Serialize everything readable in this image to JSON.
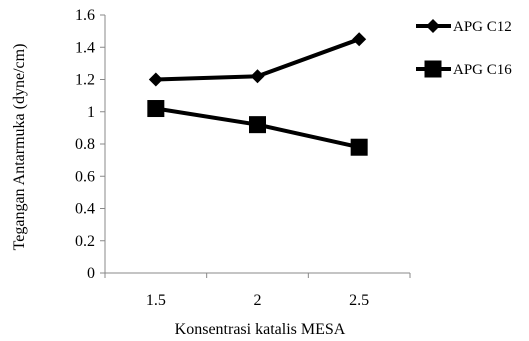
{
  "chart_data": {
    "type": "line",
    "categories": [
      "1.5",
      "2",
      "2.5"
    ],
    "x": [
      1.5,
      2,
      2.5
    ],
    "series": [
      {
        "name": "APG C12",
        "values": [
          1.2,
          1.22,
          1.45
        ],
        "marker": "diamond",
        "color": "#000000"
      },
      {
        "name": "APG C16",
        "values": [
          1.02,
          0.92,
          0.78
        ],
        "marker": "square",
        "color": "#000000"
      }
    ],
    "xlabel": "Konsentrasi katalis MESA",
    "ylabel": "Tegangan Antarmuka (dyne/cm)",
    "ylim": [
      0,
      1.6
    ],
    "yticks": [
      "0",
      "0.2",
      "0.4",
      "0.6",
      "0.8",
      "1",
      "1.2",
      "1.4",
      "1.6"
    ],
    "grid": false,
    "legend": "right"
  }
}
